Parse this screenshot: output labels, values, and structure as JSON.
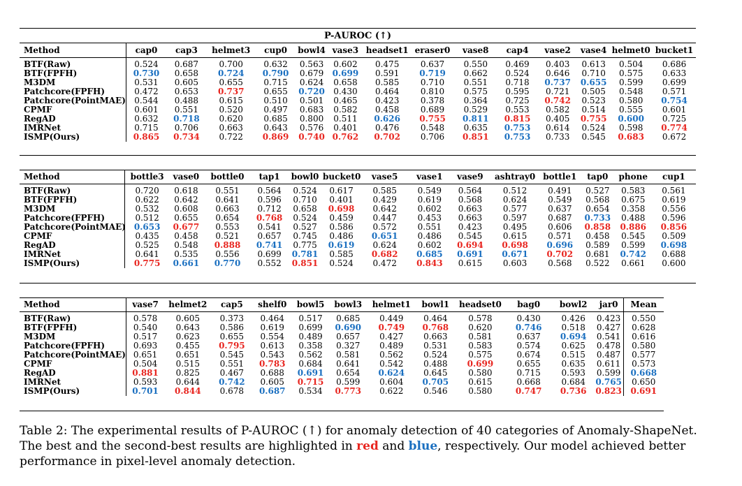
{
  "title": "P-AUROC (↑)",
  "caption": {
    "part1": "Table 2: The experimental results of P-AUROC (↑) for anomaly detection of 40 categories of Anomaly-ShapeNet. The best and the second-best results are highlighted in ",
    "red": "red",
    "and": " and ",
    "blue": "blue",
    "part2": ", respectively. Our model achieved better performance in pixel-level anomaly detection."
  },
  "colors": {
    "best": "#e8251f",
    "second": "#1a6fc0"
  },
  "tables": [
    {
      "method_header": "Method",
      "columns": [
        "cap0",
        "cap3",
        "helmet3",
        "cup0",
        "bowl4",
        "vase3",
        "headset1",
        "eraser0",
        "vase8",
        "cap4",
        "vase2",
        "vase4",
        "helmet0",
        "bucket1"
      ],
      "rows": [
        {
          "method": "BTF(Raw)",
          "values": [
            "0.524",
            "0.687",
            "0.700",
            "0.632",
            "0.563",
            "0.602",
            "0.475",
            "0.637",
            "0.550",
            "0.469",
            "0.403",
            "0.613",
            "0.504",
            "0.686"
          ],
          "marks": [
            "",
            "",
            "",
            "",
            "",
            "",
            "",
            "",
            "",
            "",
            "",
            "",
            "",
            ""
          ]
        },
        {
          "method": "BTF(FPFH)",
          "values": [
            "0.730",
            "0.658",
            "0.724",
            "0.790",
            "0.679",
            "0.699",
            "0.591",
            "0.719",
            "0.662",
            "0.524",
            "0.646",
            "0.710",
            "0.575",
            "0.633"
          ],
          "marks": [
            "b",
            "",
            "b",
            "b",
            "",
            "b",
            "",
            "b",
            "",
            "",
            "",
            "",
            "",
            ""
          ]
        },
        {
          "method": "M3DM",
          "values": [
            "0.531",
            "0.605",
            "0.655",
            "0.715",
            "0.624",
            "0.658",
            "0.585",
            "0.710",
            "0.551",
            "0.718",
            "0.737",
            "0.655",
            "0.599",
            "0.699"
          ],
          "marks": [
            "",
            "",
            "",
            "",
            "",
            "",
            "",
            "",
            "",
            "",
            "b",
            "b",
            "",
            ""
          ]
        },
        {
          "method": "Patchcore(FPFH)",
          "values": [
            "0.472",
            "0.653",
            "0.737",
            "0.655",
            "0.720",
            "0.430",
            "0.464",
            "0.810",
            "0.575",
            "0.595",
            "0.721",
            "0.505",
            "0.548",
            "0.571"
          ],
          "marks": [
            "",
            "",
            "r",
            "",
            "b",
            "",
            "",
            "",
            "",
            "",
            "",
            "",
            "",
            ""
          ]
        },
        {
          "method": "Patchcore(PointMAE)",
          "values": [
            "0.544",
            "0.488",
            "0.615",
            "0.510",
            "0.501",
            "0.465",
            "0.423",
            "0.378",
            "0.364",
            "0.725",
            "0.742",
            "0.523",
            "0.580",
            "0.754"
          ],
          "marks": [
            "",
            "",
            "",
            "",
            "",
            "",
            "",
            "",
            "",
            "",
            "r",
            "",
            "",
            "b"
          ]
        },
        {
          "method": "CPMF",
          "values": [
            "0.601",
            "0.551",
            "0.520",
            "0.497",
            "0.683",
            "0.582",
            "0.458",
            "0.689",
            "0.529",
            "0.553",
            "0.582",
            "0.514",
            "0.555",
            "0.601"
          ],
          "marks": [
            "",
            "",
            "",
            "",
            "",
            "",
            "",
            "",
            "",
            "",
            "",
            "",
            "",
            ""
          ]
        },
        {
          "method": "RegAD",
          "values": [
            "0.632",
            "0.718",
            "0.620",
            "0.685",
            "0.800",
            "0.511",
            "0.626",
            "0.755",
            "0.811",
            "0.815",
            "0.405",
            "0.755",
            "0.600",
            "0.725"
          ],
          "marks": [
            "",
            "b",
            "",
            "",
            "",
            "",
            "b",
            "r",
            "b",
            "r",
            "",
            "r",
            "b",
            ""
          ]
        },
        {
          "method": "IMRNet",
          "values": [
            "0.715",
            "0.706",
            "0.663",
            "0.643",
            "0.576",
            "0.401",
            "0.476",
            "0.548",
            "0.635",
            "0.753",
            "0.614",
            "0.524",
            "0.598",
            "0.774"
          ],
          "marks": [
            "",
            "",
            "",
            "",
            "",
            "",
            "",
            "",
            "",
            "b",
            "",
            "",
            "",
            "r"
          ]
        },
        {
          "method": "ISMP(Ours)",
          "values": [
            "0.865",
            "0.734",
            "0.722",
            "0.869",
            "0.740",
            "0.762",
            "0.702",
            "0.706",
            "0.851",
            "0.753",
            "0.733",
            "0.545",
            "0.683",
            "0.672"
          ],
          "marks": [
            "r",
            "r",
            "",
            "r",
            "r",
            "r",
            "r",
            "",
            "r",
            "b",
            "",
            "",
            "r",
            ""
          ]
        }
      ]
    },
    {
      "method_header": "Method",
      "columns": [
        "bottle3",
        "vase0",
        "bottle0",
        "tap1",
        "bowl0",
        "bucket0",
        "vase5",
        "vase1",
        "vase9",
        "ashtray0",
        "bottle1",
        "tap0",
        "phone",
        "cup1"
      ],
      "rows": [
        {
          "method": "BTF(Raw)",
          "values": [
            "0.720",
            "0.618",
            "0.551",
            "0.564",
            "0.524",
            "0.617",
            "0.585",
            "0.549",
            "0.564",
            "0.512",
            "0.491",
            "0.527",
            "0.583",
            "0.561"
          ],
          "marks": [
            "",
            "",
            "",
            "",
            "",
            "",
            "",
            "",
            "",
            "",
            "",
            "",
            "",
            ""
          ]
        },
        {
          "method": "BTF(FPFH)",
          "values": [
            "0.622",
            "0.642",
            "0.641",
            "0.596",
            "0.710",
            "0.401",
            "0.429",
            "0.619",
            "0.568",
            "0.624",
            "0.549",
            "0.568",
            "0.675",
            "0.619"
          ],
          "marks": [
            "",
            "",
            "",
            "",
            "",
            "",
            "",
            "",
            "",
            "",
            "",
            "",
            "",
            ""
          ]
        },
        {
          "method": "M3DM",
          "values": [
            "0.532",
            "0.608",
            "0.663",
            "0.712",
            "0.658",
            "0.698",
            "0.642",
            "0.602",
            "0.663",
            "0.577",
            "0.637",
            "0.654",
            "0.358",
            "0.556"
          ],
          "marks": [
            "",
            "",
            "",
            "",
            "",
            "r",
            "",
            "",
            "",
            "",
            "",
            "",
            "",
            ""
          ]
        },
        {
          "method": "Patchcore(FPFH)",
          "values": [
            "0.512",
            "0.655",
            "0.654",
            "0.768",
            "0.524",
            "0.459",
            "0.447",
            "0.453",
            "0.663",
            "0.597",
            "0.687",
            "0.733",
            "0.488",
            "0.596"
          ],
          "marks": [
            "",
            "",
            "",
            "r",
            "",
            "",
            "",
            "",
            "",
            "",
            "",
            "b",
            "",
            ""
          ]
        },
        {
          "method": "Patchcore(PointMAE)",
          "values": [
            "0.653",
            "0.677",
            "0.553",
            "0.541",
            "0.527",
            "0.586",
            "0.572",
            "0.551",
            "0.423",
            "0.495",
            "0.606",
            "0.858",
            "0.886",
            "0.856"
          ],
          "marks": [
            "b",
            "r",
            "",
            "",
            "",
            "",
            "",
            "",
            "",
            "",
            "",
            "r",
            "r",
            "r"
          ]
        },
        {
          "method": "CPMF",
          "values": [
            "0.435",
            "0.458",
            "0.521",
            "0.657",
            "0.745",
            "0.486",
            "0.651",
            "0.486",
            "0.545",
            "0.615",
            "0.571",
            "0.458",
            "0.545",
            "0.509"
          ],
          "marks": [
            "",
            "",
            "",
            "",
            "",
            "",
            "b",
            "",
            "",
            "",
            "",
            "",
            "",
            ""
          ]
        },
        {
          "method": "RegAD",
          "values": [
            "0.525",
            "0.548",
            "0.888",
            "0.741",
            "0.775",
            "0.619",
            "0.624",
            "0.602",
            "0.694",
            "0.698",
            "0.696",
            "0.589",
            "0.599",
            "0.698"
          ],
          "marks": [
            "",
            "",
            "r",
            "b",
            "",
            "b",
            "",
            "",
            "r",
            "r",
            "b",
            "",
            "",
            "b"
          ]
        },
        {
          "method": "IMRNet",
          "values": [
            "0.641",
            "0.535",
            "0.556",
            "0.699",
            "0.781",
            "0.585",
            "0.682",
            "0.685",
            "0.691",
            "0.671",
            "0.702",
            "0.681",
            "0.742",
            "0.688"
          ],
          "marks": [
            "",
            "",
            "",
            "",
            "b",
            "",
            "r",
            "b",
            "b",
            "b",
            "r",
            "",
            "b",
            ""
          ]
        },
        {
          "method": "ISMP(Ours)",
          "values": [
            "0.775",
            "0.661",
            "0.770",
            "0.552",
            "0.851",
            "0.524",
            "0.472",
            "0.843",
            "0.615",
            "0.603",
            "0.568",
            "0.522",
            "0.661",
            "0.600"
          ],
          "marks": [
            "r",
            "b",
            "b",
            "",
            "r",
            "",
            "",
            "r",
            "",
            "",
            "",
            "",
            "",
            ""
          ]
        }
      ]
    },
    {
      "method_header": "Method",
      "columns": [
        "vase7",
        "helmet2",
        "cap5",
        "shelf0",
        "bowl5",
        "bowl3",
        "helmet1",
        "bowl1",
        "headset0",
        "bag0",
        "bowl2",
        "jar0",
        "Mean"
      ],
      "rows": [
        {
          "method": "BTF(Raw)",
          "values": [
            "0.578",
            "0.605",
            "0.373",
            "0.464",
            "0.517",
            "0.685",
            "0.449",
            "0.464",
            "0.578",
            "0.430",
            "0.426",
            "0.423",
            "0.550"
          ],
          "marks": [
            "",
            "",
            "",
            "",
            "",
            "",
            "",
            "",
            "",
            "",
            "",
            "",
            ""
          ]
        },
        {
          "method": "BTF(FPFH)",
          "values": [
            "0.540",
            "0.643",
            "0.586",
            "0.619",
            "0.699",
            "0.690",
            "0.749",
            "0.768",
            "0.620",
            "0.746",
            "0.518",
            "0.427",
            "0.628"
          ],
          "marks": [
            "",
            "",
            "",
            "",
            "",
            "b",
            "r",
            "r",
            "",
            "b",
            "",
            "",
            ""
          ]
        },
        {
          "method": "M3DM",
          "values": [
            "0.517",
            "0.623",
            "0.655",
            "0.554",
            "0.489",
            "0.657",
            "0.427",
            "0.663",
            "0.581",
            "0.637",
            "0.694",
            "0.541",
            "0.616"
          ],
          "marks": [
            "",
            "",
            "",
            "",
            "",
            "",
            "",
            "",
            "",
            "",
            "b",
            "",
            ""
          ]
        },
        {
          "method": "Patchcore(FPFH)",
          "values": [
            "0.693",
            "0.455",
            "0.795",
            "0.613",
            "0.358",
            "0.327",
            "0.489",
            "0.531",
            "0.583",
            "0.574",
            "0.625",
            "0.478",
            "0.580"
          ],
          "marks": [
            "",
            "",
            "r",
            "",
            "",
            "",
            "",
            "",
            "",
            "",
            "",
            "",
            ""
          ]
        },
        {
          "method": "Patchcore(PointMAE)",
          "values": [
            "0.651",
            "0.651",
            "0.545",
            "0.543",
            "0.562",
            "0.581",
            "0.562",
            "0.524",
            "0.575",
            "0.674",
            "0.515",
            "0.487",
            "0.577"
          ],
          "marks": [
            "",
            "",
            "",
            "",
            "",
            "",
            "",
            "",
            "",
            "",
            "",
            "",
            ""
          ]
        },
        {
          "method": "CPMF",
          "values": [
            "0.504",
            "0.515",
            "0.551",
            "0.783",
            "0.684",
            "0.641",
            "0.542",
            "0.488",
            "0.699",
            "0.655",
            "0.635",
            "0.611",
            "0.573"
          ],
          "marks": [
            "",
            "",
            "",
            "r",
            "",
            "",
            "",
            "",
            "r",
            "",
            "",
            "",
            ""
          ]
        },
        {
          "method": "RegAD",
          "values": [
            "0.881",
            "0.825",
            "0.467",
            "0.688",
            "0.691",
            "0.654",
            "0.624",
            "0.645",
            "0.580",
            "0.715",
            "0.593",
            "0.599",
            "0.668"
          ],
          "marks": [
            "r",
            "",
            "",
            "",
            "b",
            "",
            "b",
            "",
            "",
            "",
            "",
            "",
            "b"
          ]
        },
        {
          "method": "IMRNet",
          "values": [
            "0.593",
            "0.644",
            "0.742",
            "0.605",
            "0.715",
            "0.599",
            "0.604",
            "0.705",
            "0.615",
            "0.668",
            "0.684",
            "0.765",
            "0.650"
          ],
          "marks": [
            "",
            "",
            "b",
            "",
            "r",
            "",
            "",
            "b",
            "",
            "",
            "",
            "b",
            ""
          ]
        },
        {
          "method": "ISMP(Ours)",
          "values": [
            "0.701",
            "0.844",
            "0.678",
            "0.687",
            "0.534",
            "0.773",
            "0.622",
            "0.546",
            "0.580",
            "0.747",
            "0.736",
            "0.823",
            "0.691"
          ],
          "marks": [
            "b",
            "r",
            "",
            "b",
            "",
            "r",
            "",
            "",
            "",
            "r",
            "r",
            "r",
            "r"
          ]
        }
      ]
    }
  ]
}
